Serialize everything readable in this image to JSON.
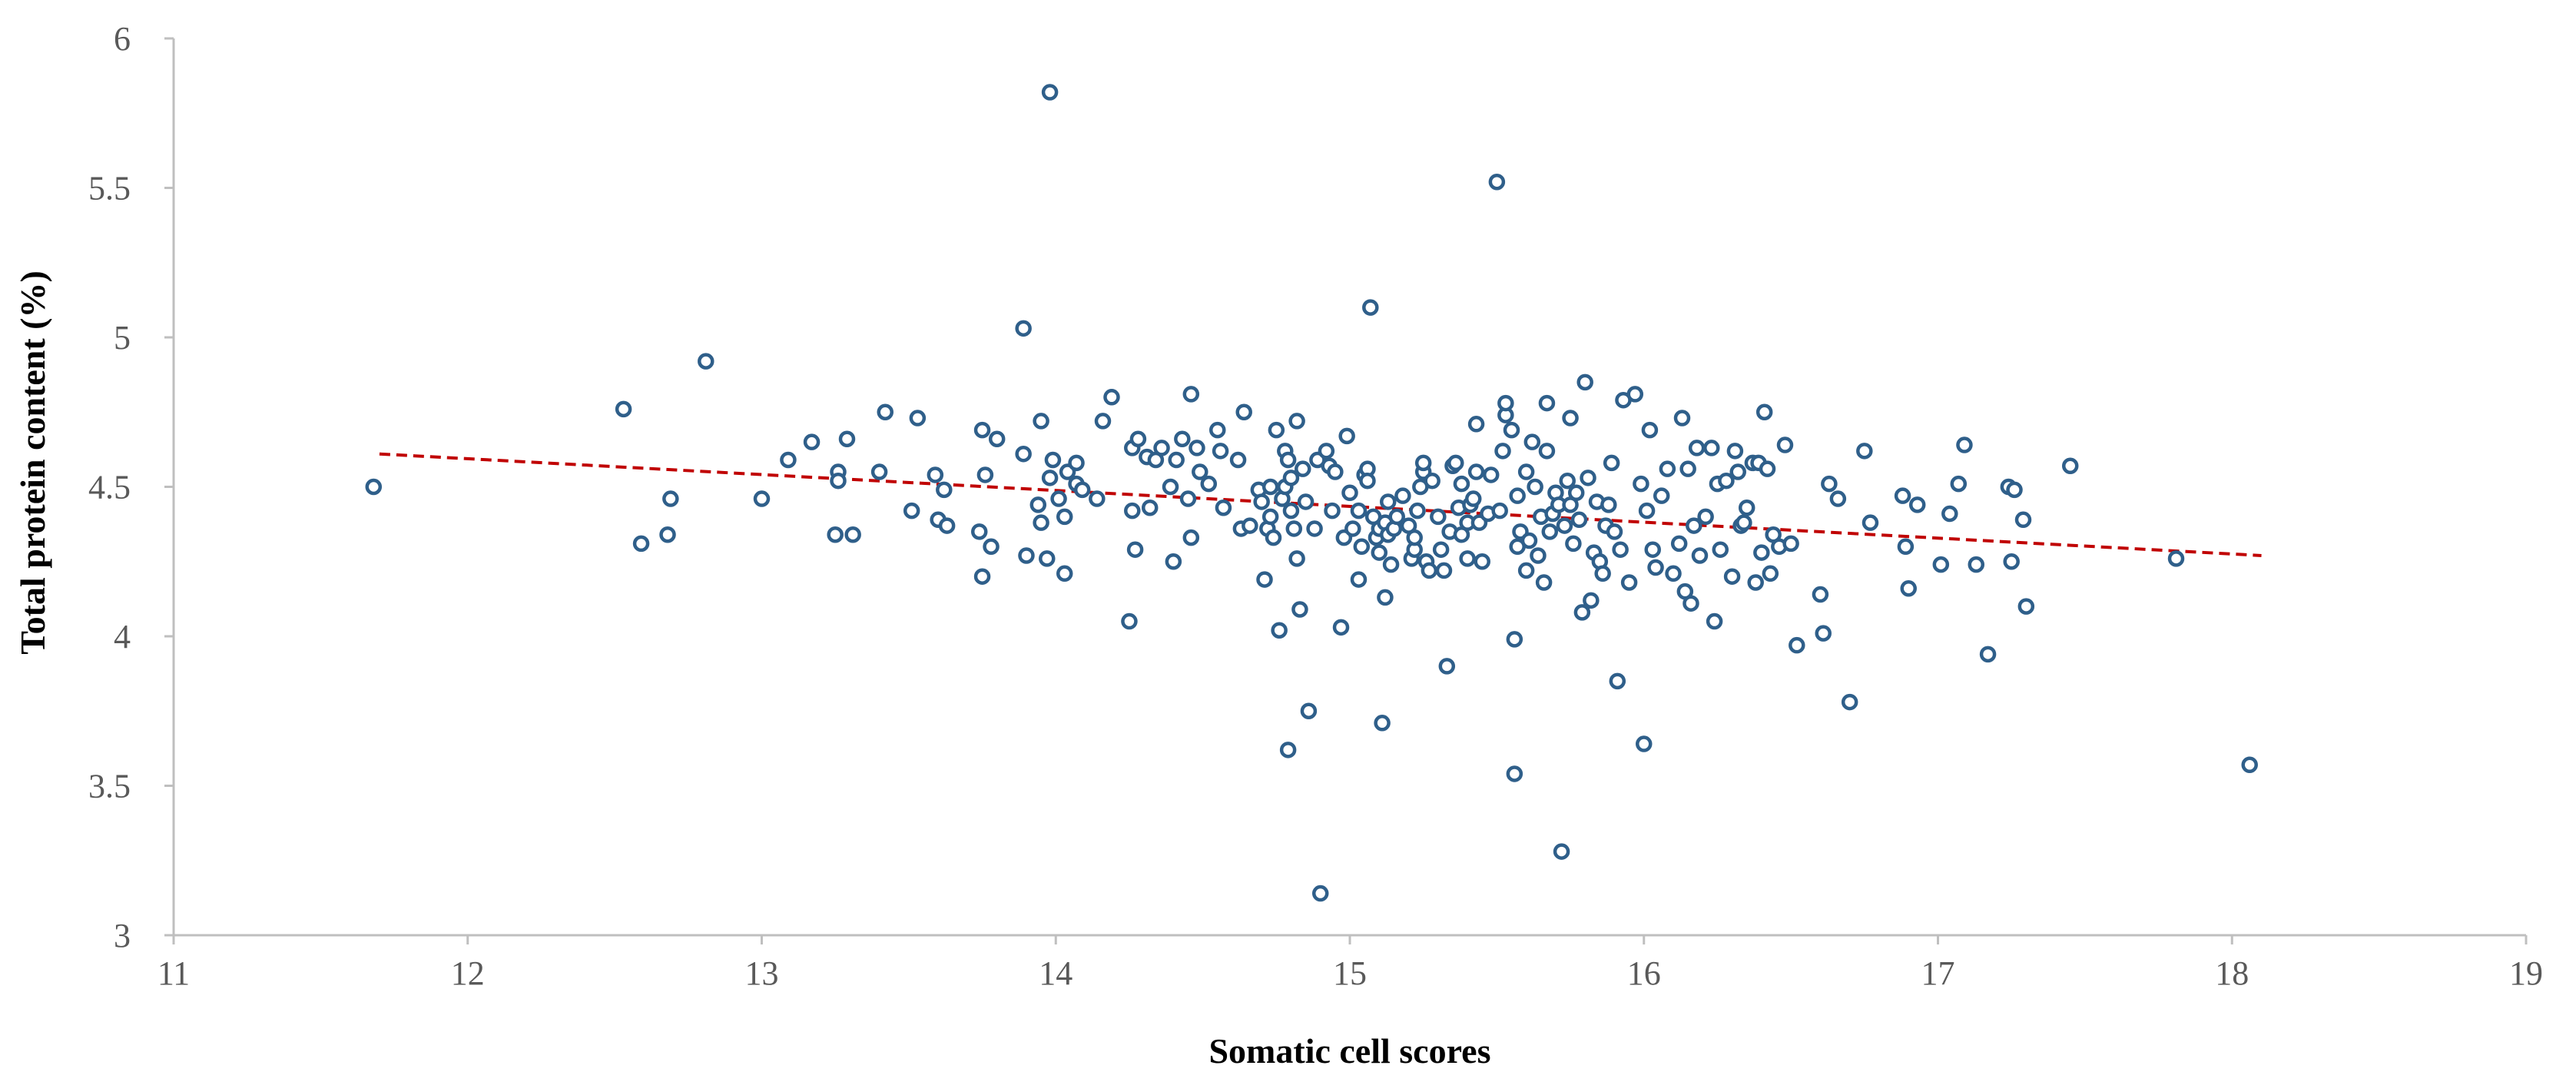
{
  "chart_data": {
    "type": "scatter",
    "title": "",
    "xlabel": "Somatic cell scores",
    "ylabel": "Total protein content (%)",
    "xlim": [
      11,
      19
    ],
    "ylim": [
      3,
      6
    ],
    "xticks": [
      "11",
      "12",
      "13",
      "14",
      "15",
      "16",
      "17",
      "18",
      "19"
    ],
    "yticks": [
      "3",
      "3.5",
      "4",
      "4.5",
      "5",
      "5.5",
      "6"
    ],
    "grid": false,
    "legend": "none",
    "colors": {
      "marker_stroke": "#2f5f8a",
      "marker_fill": "#ffffff",
      "trendline": "#c00000",
      "axis": "#bfbfbf",
      "text": "#595959"
    },
    "trendline": {
      "type": "linear",
      "style": "dashed",
      "x": [
        11.7,
        18.1
      ],
      "y": [
        4.61,
        4.27
      ]
    },
    "points": [
      [
        11.68,
        4.5
      ],
      [
        12.53,
        4.76
      ],
      [
        12.59,
        4.31
      ],
      [
        12.68,
        4.34
      ],
      [
        12.69,
        4.46
      ],
      [
        12.81,
        4.92
      ],
      [
        13.0,
        4.46
      ],
      [
        13.09,
        4.59
      ],
      [
        13.17,
        4.65
      ],
      [
        13.25,
        4.34
      ],
      [
        13.26,
        4.55
      ],
      [
        13.26,
        4.52
      ],
      [
        13.29,
        4.66
      ],
      [
        13.31,
        4.34
      ],
      [
        13.4,
        4.55
      ],
      [
        13.42,
        4.75
      ],
      [
        13.51,
        4.42
      ],
      [
        13.53,
        4.73
      ],
      [
        13.59,
        4.54
      ],
      [
        13.6,
        4.39
      ],
      [
        13.62,
        4.49
      ],
      [
        13.63,
        4.37
      ],
      [
        13.74,
        4.35
      ],
      [
        13.75,
        4.69
      ],
      [
        13.75,
        4.2
      ],
      [
        13.76,
        4.54
      ],
      [
        13.78,
        4.3
      ],
      [
        13.8,
        4.66
      ],
      [
        13.89,
        5.03
      ],
      [
        13.89,
        4.61
      ],
      [
        13.9,
        4.27
      ],
      [
        13.94,
        4.44
      ],
      [
        13.95,
        4.72
      ],
      [
        13.95,
        4.38
      ],
      [
        13.97,
        4.26
      ],
      [
        13.98,
        4.53
      ],
      [
        13.98,
        5.82
      ],
      [
        13.99,
        4.59
      ],
      [
        14.01,
        4.46
      ],
      [
        14.03,
        4.4
      ],
      [
        14.03,
        4.21
      ],
      [
        14.04,
        4.55
      ],
      [
        14.07,
        4.51
      ],
      [
        14.07,
        4.58
      ],
      [
        14.09,
        4.49
      ],
      [
        14.14,
        4.46
      ],
      [
        14.16,
        4.72
      ],
      [
        14.19,
        4.8
      ],
      [
        14.25,
        4.05
      ],
      [
        14.26,
        4.42
      ],
      [
        14.26,
        4.63
      ],
      [
        14.27,
        4.29
      ],
      [
        14.28,
        4.66
      ],
      [
        14.31,
        4.6
      ],
      [
        14.32,
        4.43
      ],
      [
        14.34,
        4.59
      ],
      [
        14.36,
        4.63
      ],
      [
        14.39,
        4.5
      ],
      [
        14.4,
        4.25
      ],
      [
        14.41,
        4.59
      ],
      [
        14.43,
        4.66
      ],
      [
        14.45,
        4.46
      ],
      [
        14.46,
        4.81
      ],
      [
        14.46,
        4.33
      ],
      [
        14.48,
        4.63
      ],
      [
        14.49,
        4.55
      ],
      [
        14.52,
        4.51
      ],
      [
        14.55,
        4.69
      ],
      [
        14.56,
        4.62
      ],
      [
        14.57,
        4.43
      ],
      [
        14.62,
        4.59
      ],
      [
        14.63,
        4.36
      ],
      [
        14.64,
        4.75
      ],
      [
        14.66,
        4.37
      ],
      [
        14.69,
        4.49
      ],
      [
        14.7,
        4.45
      ],
      [
        14.71,
        4.19
      ],
      [
        14.72,
        4.36
      ],
      [
        14.73,
        4.5
      ],
      [
        14.73,
        4.4
      ],
      [
        14.74,
        4.33
      ],
      [
        14.75,
        4.69
      ],
      [
        14.76,
        4.02
      ],
      [
        14.77,
        4.46
      ],
      [
        14.78,
        4.5
      ],
      [
        14.78,
        4.62
      ],
      [
        14.79,
        4.59
      ],
      [
        14.79,
        3.62
      ],
      [
        14.8,
        4.42
      ],
      [
        14.8,
        4.53
      ],
      [
        14.81,
        4.36
      ],
      [
        14.82,
        4.26
      ],
      [
        14.82,
        4.72
      ],
      [
        14.83,
        4.09
      ],
      [
        14.84,
        4.56
      ],
      [
        14.85,
        4.45
      ],
      [
        14.86,
        3.75
      ],
      [
        14.88,
        4.36
      ],
      [
        14.89,
        4.59
      ],
      [
        14.9,
        3.14
      ],
      [
        14.92,
        4.62
      ],
      [
        14.93,
        4.57
      ],
      [
        14.94,
        4.42
      ],
      [
        14.95,
        4.55
      ],
      [
        14.97,
        4.03
      ],
      [
        14.98,
        4.33
      ],
      [
        14.99,
        4.67
      ],
      [
        15.0,
        4.48
      ],
      [
        15.01,
        4.36
      ],
      [
        15.03,
        4.42
      ],
      [
        15.03,
        4.19
      ],
      [
        15.04,
        4.3
      ],
      [
        15.05,
        4.54
      ],
      [
        15.06,
        4.56
      ],
      [
        15.06,
        4.52
      ],
      [
        15.07,
        5.1
      ],
      [
        15.08,
        4.4
      ],
      [
        15.09,
        4.33
      ],
      [
        15.1,
        4.36
      ],
      [
        15.1,
        4.28
      ],
      [
        15.11,
        3.71
      ],
      [
        15.12,
        4.38
      ],
      [
        15.12,
        4.13
      ],
      [
        15.13,
        4.45
      ],
      [
        15.13,
        4.34
      ],
      [
        15.14,
        4.24
      ],
      [
        15.15,
        4.36
      ],
      [
        15.16,
        4.4
      ],
      [
        15.18,
        4.47
      ],
      [
        15.2,
        4.37
      ],
      [
        15.21,
        4.26
      ],
      [
        15.22,
        4.29
      ],
      [
        15.22,
        4.33
      ],
      [
        15.23,
        4.42
      ],
      [
        15.24,
        4.5
      ],
      [
        15.25,
        4.55
      ],
      [
        15.25,
        4.58
      ],
      [
        15.26,
        4.25
      ],
      [
        15.27,
        4.22
      ],
      [
        15.28,
        4.52
      ],
      [
        15.3,
        4.4
      ],
      [
        15.31,
        4.29
      ],
      [
        15.32,
        4.22
      ],
      [
        15.33,
        3.9
      ],
      [
        15.34,
        4.35
      ],
      [
        15.35,
        4.57
      ],
      [
        15.36,
        4.58
      ],
      [
        15.37,
        4.43
      ],
      [
        15.38,
        4.34
      ],
      [
        15.38,
        4.51
      ],
      [
        15.4,
        4.38
      ],
      [
        15.4,
        4.26
      ],
      [
        15.41,
        4.44
      ],
      [
        15.42,
        4.46
      ],
      [
        15.43,
        4.55
      ],
      [
        15.43,
        4.71
      ],
      [
        15.44,
        4.38
      ],
      [
        15.45,
        4.25
      ],
      [
        15.47,
        4.41
      ],
      [
        15.48,
        4.54
      ],
      [
        15.5,
        5.52
      ],
      [
        15.51,
        4.42
      ],
      [
        15.52,
        4.62
      ],
      [
        15.53,
        4.74
      ],
      [
        15.53,
        4.78
      ],
      [
        15.55,
        4.69
      ],
      [
        15.56,
        3.54
      ],
      [
        15.56,
        3.99
      ],
      [
        15.57,
        4.3
      ],
      [
        15.57,
        4.47
      ],
      [
        15.58,
        4.35
      ],
      [
        15.6,
        4.55
      ],
      [
        15.6,
        4.22
      ],
      [
        15.61,
        4.32
      ],
      [
        15.62,
        4.65
      ],
      [
        15.63,
        4.5
      ],
      [
        15.64,
        4.27
      ],
      [
        15.65,
        4.4
      ],
      [
        15.66,
        4.18
      ],
      [
        15.67,
        4.62
      ],
      [
        15.67,
        4.78
      ],
      [
        15.68,
        4.35
      ],
      [
        15.69,
        4.41
      ],
      [
        15.7,
        4.48
      ],
      [
        15.71,
        4.44
      ],
      [
        15.72,
        3.28
      ],
      [
        15.73,
        4.37
      ],
      [
        15.74,
        4.52
      ],
      [
        15.75,
        4.73
      ],
      [
        15.75,
        4.44
      ],
      [
        15.76,
        4.31
      ],
      [
        15.77,
        4.48
      ],
      [
        15.78,
        4.39
      ],
      [
        15.79,
        4.08
      ],
      [
        15.8,
        4.85
      ],
      [
        15.81,
        4.53
      ],
      [
        15.82,
        4.12
      ],
      [
        15.83,
        4.28
      ],
      [
        15.84,
        4.45
      ],
      [
        15.85,
        4.25
      ],
      [
        15.86,
        4.21
      ],
      [
        15.87,
        4.37
      ],
      [
        15.88,
        4.44
      ],
      [
        15.89,
        4.58
      ],
      [
        15.9,
        4.35
      ],
      [
        15.91,
        3.85
      ],
      [
        15.92,
        4.29
      ],
      [
        15.93,
        4.79
      ],
      [
        15.95,
        4.18
      ],
      [
        15.97,
        4.81
      ],
      [
        15.99,
        4.51
      ],
      [
        16.0,
        3.64
      ],
      [
        16.01,
        4.42
      ],
      [
        16.02,
        4.69
      ],
      [
        16.03,
        4.29
      ],
      [
        16.04,
        4.23
      ],
      [
        16.06,
        4.47
      ],
      [
        16.08,
        4.56
      ],
      [
        16.1,
        4.21
      ],
      [
        16.12,
        4.31
      ],
      [
        16.13,
        4.73
      ],
      [
        16.14,
        4.15
      ],
      [
        16.15,
        4.56
      ],
      [
        16.16,
        4.11
      ],
      [
        16.17,
        4.37
      ],
      [
        16.18,
        4.63
      ],
      [
        16.19,
        4.27
      ],
      [
        16.21,
        4.4
      ],
      [
        16.23,
        4.63
      ],
      [
        16.24,
        4.05
      ],
      [
        16.25,
        4.51
      ],
      [
        16.26,
        4.29
      ],
      [
        16.28,
        4.52
      ],
      [
        16.3,
        4.2
      ],
      [
        16.31,
        4.62
      ],
      [
        16.32,
        4.55
      ],
      [
        16.33,
        4.37
      ],
      [
        16.34,
        4.38
      ],
      [
        16.35,
        4.43
      ],
      [
        16.37,
        4.58
      ],
      [
        16.38,
        4.18
      ],
      [
        16.39,
        4.58
      ],
      [
        16.4,
        4.28
      ],
      [
        16.41,
        4.75
      ],
      [
        16.42,
        4.56
      ],
      [
        16.43,
        4.21
      ],
      [
        16.44,
        4.34
      ],
      [
        16.46,
        4.3
      ],
      [
        16.48,
        4.64
      ],
      [
        16.5,
        4.31
      ],
      [
        16.52,
        3.97
      ],
      [
        16.6,
        4.14
      ],
      [
        16.61,
        4.01
      ],
      [
        16.63,
        4.51
      ],
      [
        16.66,
        4.46
      ],
      [
        16.7,
        3.78
      ],
      [
        16.75,
        4.62
      ],
      [
        16.77,
        4.38
      ],
      [
        16.88,
        4.47
      ],
      [
        16.89,
        4.3
      ],
      [
        16.9,
        4.16
      ],
      [
        16.93,
        4.44
      ],
      [
        17.01,
        4.24
      ],
      [
        17.04,
        4.41
      ],
      [
        17.07,
        4.51
      ],
      [
        17.09,
        4.64
      ],
      [
        17.13,
        4.24
      ],
      [
        17.17,
        3.94
      ],
      [
        17.24,
        4.5
      ],
      [
        17.25,
        4.25
      ],
      [
        17.26,
        4.49
      ],
      [
        17.29,
        4.39
      ],
      [
        17.3,
        4.1
      ],
      [
        17.45,
        4.57
      ],
      [
        17.81,
        4.26
      ],
      [
        18.06,
        3.57
      ]
    ]
  }
}
